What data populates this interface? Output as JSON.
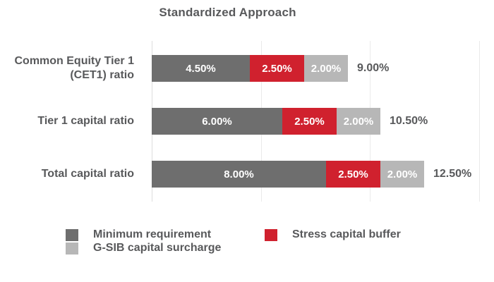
{
  "chart_data": {
    "type": "bar",
    "subtype": "horizontal-stacked",
    "title": "Standardized Approach",
    "categories": [
      "Common Equity Tier 1\n(CET1) ratio",
      "Tier 1 capital ratio",
      "Total capital ratio"
    ],
    "series": [
      {
        "name": "Minimum requirement",
        "key": "minimum-requirement",
        "color": "#6e6e6e",
        "values": [
          4.5,
          6.0,
          8.0
        ],
        "labels": [
          "4.50%",
          "6.00%",
          "8.00%"
        ]
      },
      {
        "name": "Stress capital buffer",
        "key": "stress-capital-buffer",
        "color": "#d0212e",
        "values": [
          2.5,
          2.5,
          2.5
        ],
        "labels": [
          "2.50%",
          "2.50%",
          "2.50%"
        ]
      },
      {
        "name": "G-SIB capital surcharge",
        "key": "g-sib-capital-surcharge",
        "color": "#b7b7b7",
        "values": [
          2.0,
          2.0,
          2.0
        ],
        "labels": [
          "2.00%",
          "2.00%",
          "2.00%"
        ]
      }
    ],
    "totals": [
      "9.00%",
      "10.50%",
      "12.50%"
    ],
    "axis": {
      "min": 0,
      "max": 15,
      "unit": "%",
      "gridlines_percent": [
        0,
        5,
        10,
        15
      ],
      "tick_labels_visible": false
    },
    "legend_position": "bottom",
    "colors": {
      "text": "#58595b",
      "bar_label_text": "#ffffff",
      "gridline": "#eaeaea",
      "background": "#ffffff"
    }
  }
}
